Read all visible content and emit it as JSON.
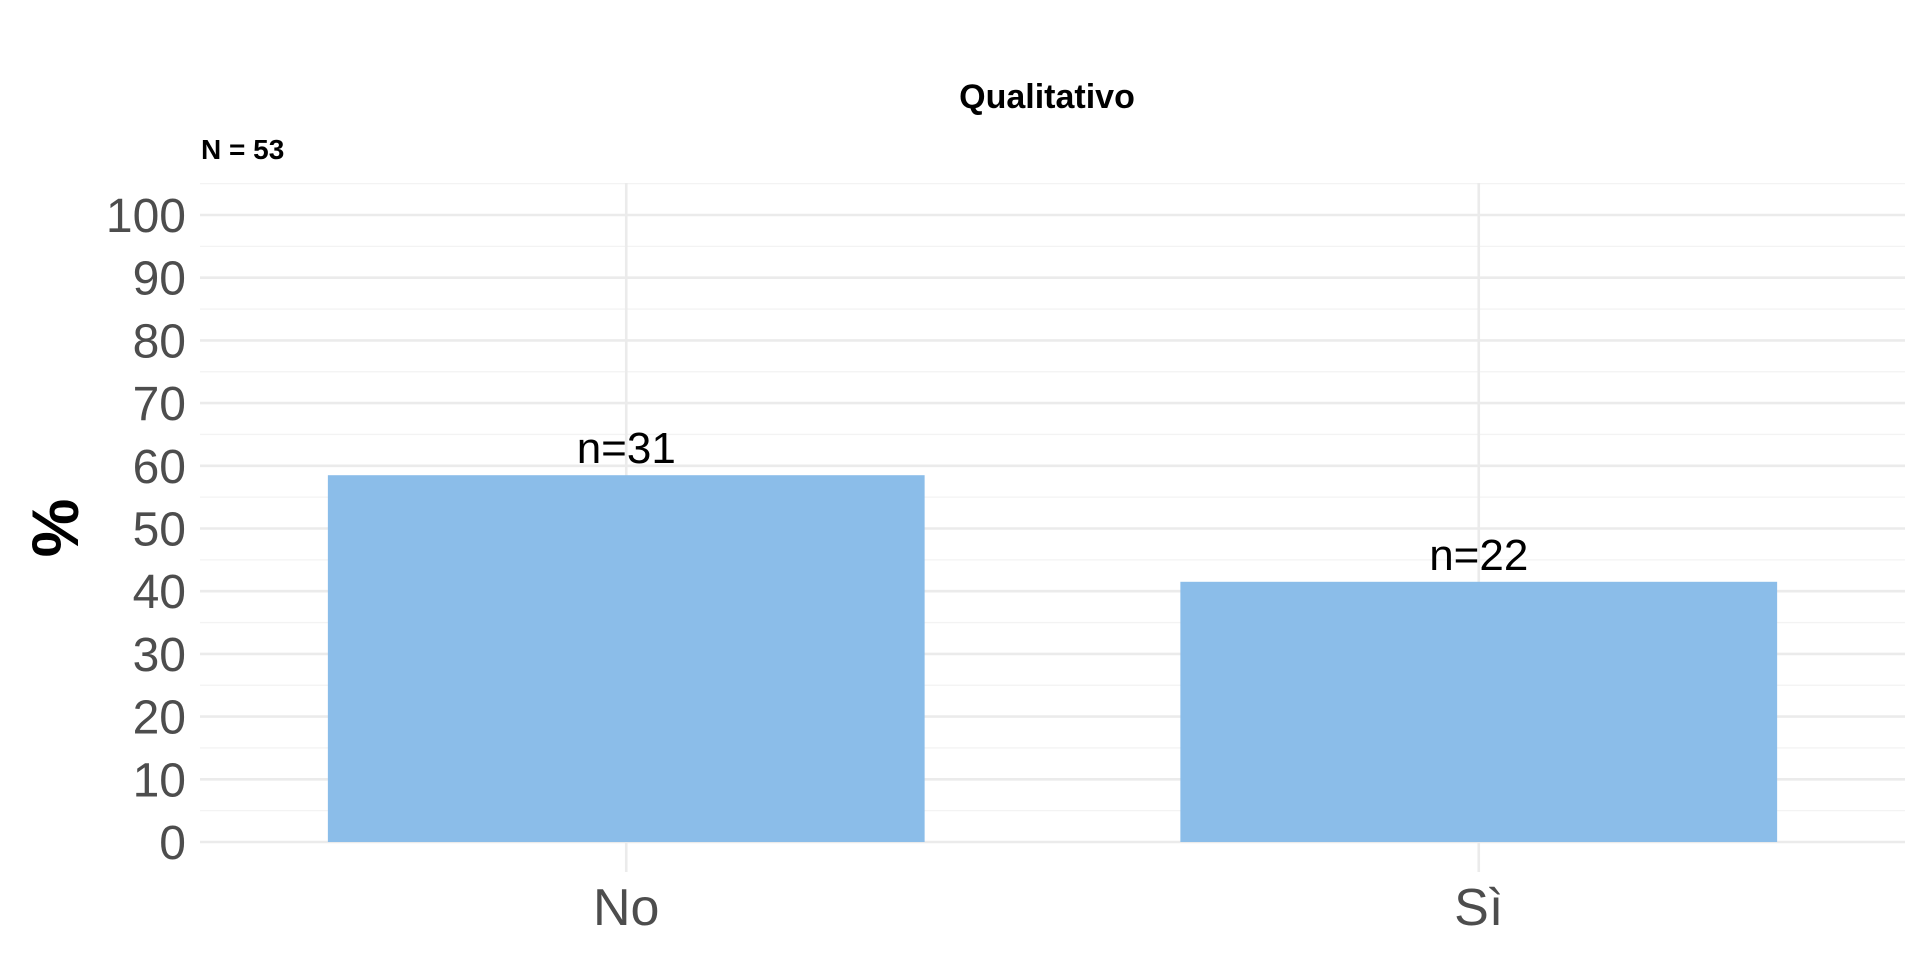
{
  "chart_data": {
    "type": "bar",
    "title": "Qualitativo",
    "subtitle": "N = 53",
    "xlabel": "",
    "ylabel": "%",
    "categories": [
      "No",
      "Sì"
    ],
    "values": [
      58.5,
      41.5
    ],
    "counts_labels": [
      "n=31",
      "n=22"
    ],
    "ylim": [
      0,
      100
    ],
    "yticks": [
      0,
      10,
      20,
      30,
      40,
      50,
      60,
      70,
      80,
      90,
      100
    ],
    "grid": true,
    "legend": "none",
    "bar_color": "#8bbde9"
  }
}
